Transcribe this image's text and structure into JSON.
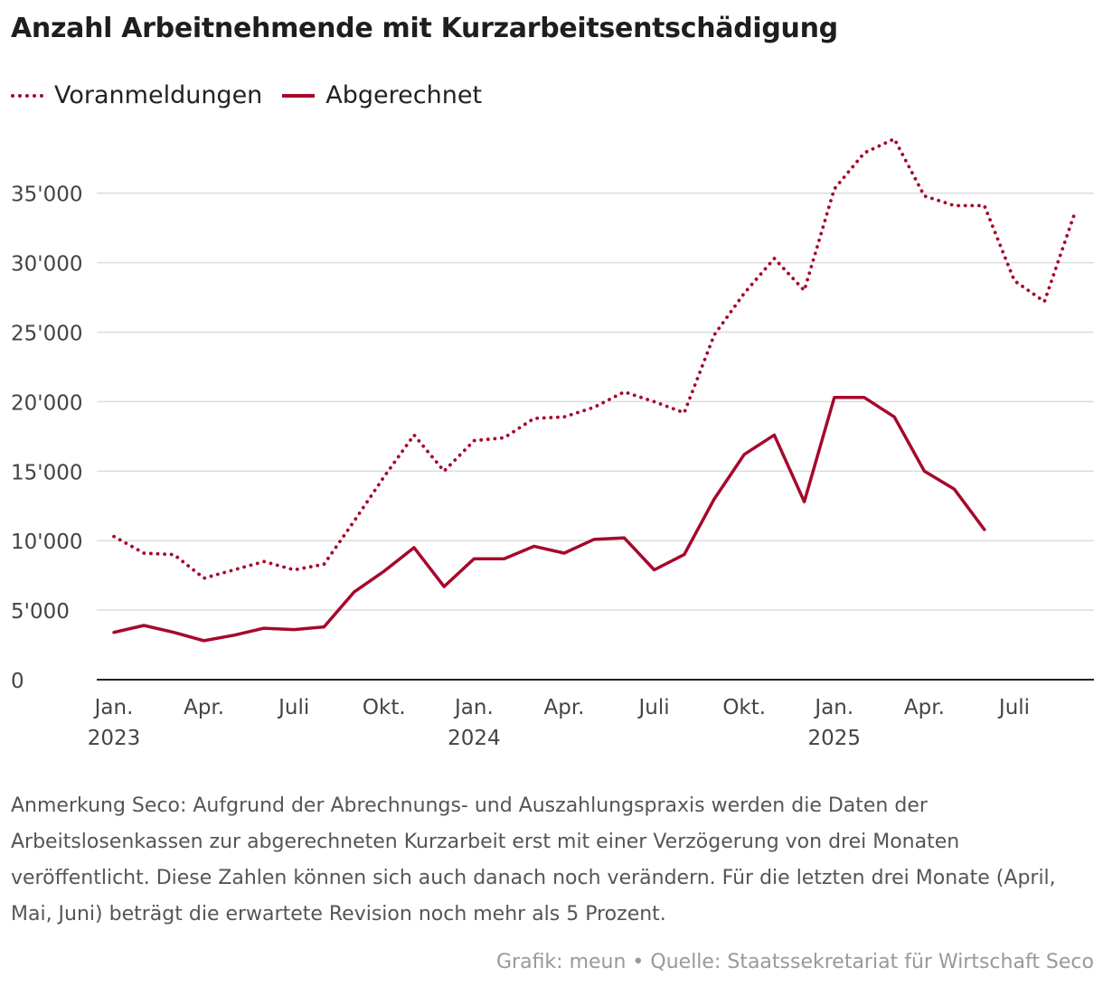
{
  "title": "Anzahl Arbeitnehmende mit Kurzarbeitsentschädigung",
  "chart_data": {
    "type": "line",
    "title": "Anzahl Arbeitnehmende mit Kurzarbeitsentschädigung",
    "xlabel": "",
    "ylabel": "",
    "ylim": [
      0,
      39000
    ],
    "yticks": [
      0,
      5000,
      10000,
      15000,
      20000,
      25000,
      30000,
      35000
    ],
    "ytick_labels": [
      "0",
      "5'000",
      "10'000",
      "15'000",
      "20'000",
      "25'000",
      "30'000",
      "35'000"
    ],
    "x": [
      "2023-01",
      "2023-02",
      "2023-03",
      "2023-04",
      "2023-05",
      "2023-06",
      "2023-07",
      "2023-08",
      "2023-09",
      "2023-10",
      "2023-11",
      "2023-12",
      "2024-01",
      "2024-02",
      "2024-03",
      "2024-04",
      "2024-05",
      "2024-06",
      "2024-07",
      "2024-08",
      "2024-09",
      "2024-10",
      "2024-11",
      "2024-12",
      "2025-01",
      "2025-02",
      "2025-03",
      "2025-04",
      "2025-05",
      "2025-06",
      "2025-07",
      "2025-08",
      "2025-09"
    ],
    "xticks": [
      {
        "index": 0,
        "label": "Jan.",
        "year": "2023"
      },
      {
        "index": 3,
        "label": "Apr.",
        "year": ""
      },
      {
        "index": 6,
        "label": "Juli",
        "year": ""
      },
      {
        "index": 9,
        "label": "Okt.",
        "year": ""
      },
      {
        "index": 12,
        "label": "Jan.",
        "year": "2024"
      },
      {
        "index": 15,
        "label": "Apr.",
        "year": ""
      },
      {
        "index": 18,
        "label": "Juli",
        "year": ""
      },
      {
        "index": 21,
        "label": "Okt.",
        "year": ""
      },
      {
        "index": 24,
        "label": "Jan.",
        "year": "2025"
      },
      {
        "index": 27,
        "label": "Apr.",
        "year": ""
      },
      {
        "index": 30,
        "label": "Juli",
        "year": ""
      }
    ],
    "series": [
      {
        "name": "Voranmeldungen",
        "style": "dotted",
        "values": [
          10300,
          9100,
          9000,
          7300,
          7900,
          8500,
          7900,
          8300,
          11400,
          14600,
          17600,
          15000,
          17200,
          17400,
          18800,
          18900,
          19600,
          20700,
          20000,
          19200,
          24800,
          27800,
          30300,
          28000,
          35300,
          37900,
          38900,
          34800,
          34100,
          34100,
          28700,
          27200,
          33500
        ]
      },
      {
        "name": "Abgerechnet",
        "style": "solid",
        "values": [
          3400,
          3900,
          3400,
          2800,
          3200,
          3700,
          3600,
          3800,
          6300,
          7800,
          9500,
          6700,
          8700,
          8700,
          9600,
          9100,
          10100,
          10200,
          7900,
          9000,
          13000,
          16200,
          17600,
          12800,
          20300,
          20300,
          18900,
          15000,
          13700,
          10800,
          null,
          null,
          null
        ]
      }
    ],
    "colors": {
      "line": "#a6082b",
      "grid": "#dddddd",
      "axis": "#222222",
      "tick_text": "#444444"
    }
  },
  "note": "Anmerkung Seco: Aufgrund der Abrechnungs- und Auszahlungspraxis werden die Daten der Arbeitslosenkassen zur abgerechneten Kurzarbeit erst mit einer Verzögerung von drei Monaten veröffentlicht. Diese Zahlen können sich auch danach noch verändern. Für die letzten drei Monate (April, Mai, Juni) beträgt die erwartete Revision noch mehr als 5 Prozent.",
  "footer": "Grafik: meun • Quelle: Staatssekretariat für Wirtschaft Seco"
}
